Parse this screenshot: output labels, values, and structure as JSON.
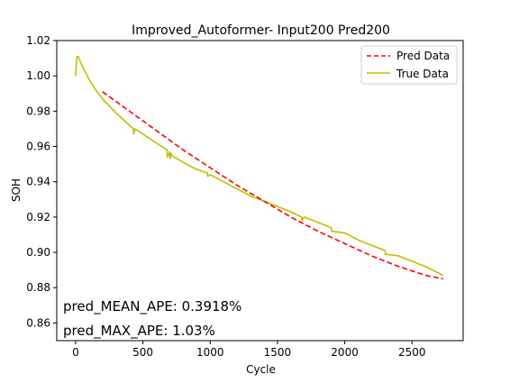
{
  "chart_data": {
    "type": "line",
    "title": "Improved_Autoformer- Input200  Pred200",
    "xlabel": "Cycle",
    "ylabel": "SOH",
    "xlim": [
      -140,
      2880
    ],
    "ylim": [
      0.85,
      1.02
    ],
    "xticks": [
      0,
      500,
      1000,
      1500,
      2000,
      2500
    ],
    "yticks": [
      0.86,
      0.88,
      0.9,
      0.92,
      0.94,
      0.96,
      0.98,
      1.0,
      1.02
    ],
    "grid": false,
    "legend": "top-right",
    "annotations": [
      {
        "text": "pred_MEAN_APE: 0.3918%",
        "position": "lower-left"
      },
      {
        "text": "pred_MAX_APE: 1.03%",
        "position": "lower-left"
      }
    ],
    "series": [
      {
        "name": "Pred Data",
        "color": "#ff0000",
        "style": "dashed",
        "x": [
          200,
          400,
          600,
          800,
          1000,
          1200,
          1400,
          1600,
          1800,
          2000,
          2200,
          2400,
          2600,
          2730
        ],
        "y": [
          0.991,
          0.98,
          0.969,
          0.958,
          0.948,
          0.938,
          0.929,
          0.92,
          0.912,
          0.905,
          0.898,
          0.892,
          0.887,
          0.885
        ]
      },
      {
        "name": "True Data",
        "color": "#bfbf00",
        "style": "solid",
        "x": [
          0,
          10,
          20,
          40,
          60,
          80,
          100,
          150,
          200,
          300,
          400,
          430,
          432,
          440,
          500,
          600,
          680,
          682,
          700,
          702,
          710,
          712,
          800,
          900,
          980,
          982,
          1000,
          1100,
          1200,
          1300,
          1400,
          1500,
          1600,
          1680,
          1682,
          1700,
          1800,
          1900,
          1902,
          2000,
          2100,
          2200,
          2300,
          2302,
          2400,
          2500,
          2600,
          2730
        ],
        "y": [
          1.0,
          1.011,
          1.011,
          1.007,
          1.004,
          1.001,
          0.998,
          0.992,
          0.987,
          0.979,
          0.972,
          0.97,
          0.967,
          0.97,
          0.967,
          0.962,
          0.958,
          0.954,
          0.957,
          0.953,
          0.956,
          0.955,
          0.951,
          0.947,
          0.945,
          0.943,
          0.944,
          0.94,
          0.936,
          0.932,
          0.929,
          0.926,
          0.923,
          0.92,
          0.918,
          0.92,
          0.917,
          0.914,
          0.912,
          0.911,
          0.907,
          0.904,
          0.901,
          0.899,
          0.898,
          0.895,
          0.892,
          0.887
        ]
      }
    ]
  }
}
